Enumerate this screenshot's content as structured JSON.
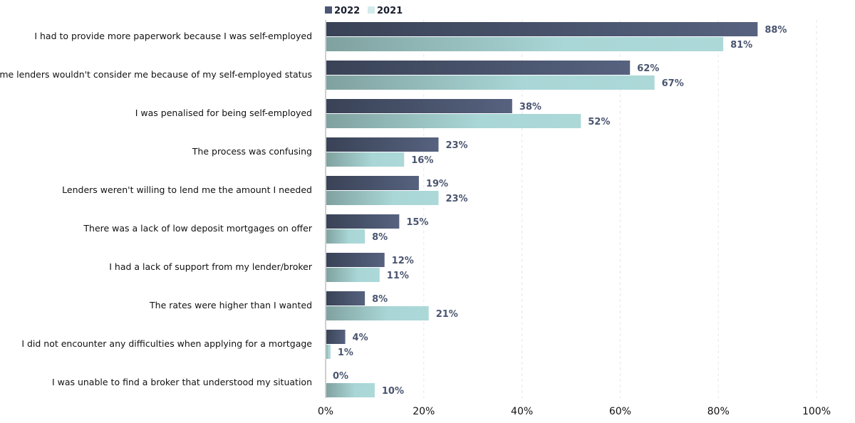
{
  "chart_data": {
    "type": "bar",
    "orientation": "horizontal",
    "title": "",
    "xlabel": "",
    "ylabel": "",
    "xlim": [
      0,
      100
    ],
    "x_ticks": [
      "0%",
      "20%",
      "40%",
      "60%",
      "80%",
      "100%"
    ],
    "grid": "vertical dashed",
    "legend_position": "top",
    "categories": [
      "I had to provide more paperwork because I was self-employed",
      "Some lenders wouldn't consider me because of my self-employed status",
      "I was penalised for being self-employed",
      "The process was confusing",
      "Lenders weren't willing to lend me the amount I needed",
      "There was a lack of low deposit mortgages on offer",
      "I had a lack of support from my lender/broker",
      "The rates were higher than I wanted",
      "I did not encounter any difficulties when applying for a mortgage",
      "I was unable to find a broker that understood my situation"
    ],
    "series": [
      {
        "name": "2022",
        "color": "#4b5675",
        "values": [
          88,
          62,
          38,
          23,
          19,
          15,
          12,
          8,
          4,
          0
        ]
      },
      {
        "name": "2021",
        "color": "#a9d6d6",
        "values": [
          81,
          67,
          52,
          16,
          23,
          8,
          11,
          21,
          1,
          10
        ]
      }
    ],
    "value_suffix": "%",
    "label_color": "#4a5570"
  }
}
